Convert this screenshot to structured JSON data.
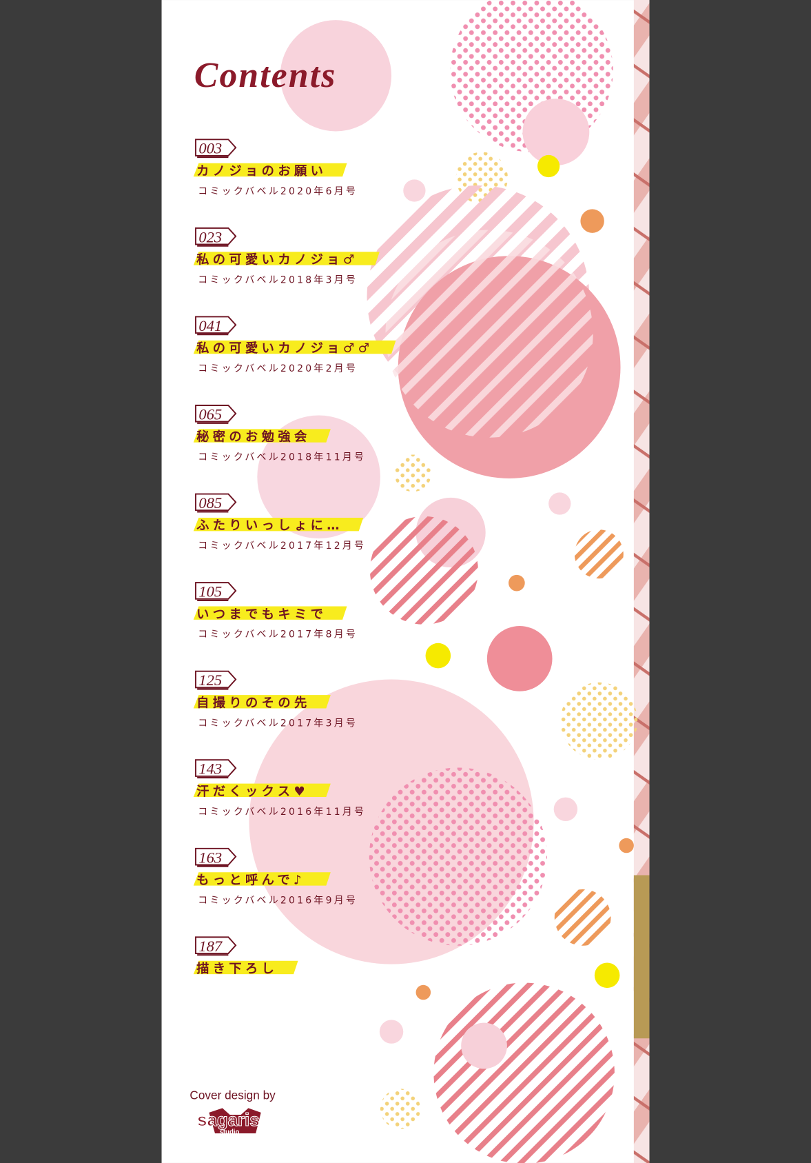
{
  "title": "Contents",
  "entries": [
    {
      "page": "003",
      "title": "カノジョのお願い",
      "source": "コミックバベル2020年6月号"
    },
    {
      "page": "023",
      "title": "私の可愛いカノジョ♂",
      "source": "コミックバベル2018年3月号"
    },
    {
      "page": "041",
      "title": "私の可愛いカノジョ♂♂",
      "source": "コミックバベル2020年2月号"
    },
    {
      "page": "065",
      "title": "秘密のお勉強会",
      "source": "コミックバベル2018年11月号"
    },
    {
      "page": "085",
      "title": "ふたりいっしょに…",
      "source": "コミックバベル2017年12月号"
    },
    {
      "page": "105",
      "title": "いつまでもキミで",
      "source": "コミックバベル2017年8月号"
    },
    {
      "page": "125",
      "title": "自撮りのその先",
      "source": "コミックバベル2017年3月号"
    },
    {
      "page": "143",
      "title": "汗だくックス♥",
      "source": "コミックバベル2016年11月号"
    },
    {
      "page": "163",
      "title": "もっと呼んで♪",
      "source": "コミックバベル2016年9月号"
    },
    {
      "page": "187",
      "title": "描き下ろし",
      "source": ""
    }
  ],
  "credit": {
    "label": "Cover design by",
    "logo_text": "sagaris",
    "logo_sub": "studio"
  },
  "colors": {
    "text": "#6e1423",
    "highlight": "#f8ec1e",
    "pink": "#f0a0a8",
    "light_pink": "#f8d5dc",
    "orange": "#ee9a5b",
    "yellow": "#f6ea00",
    "background": "#3b3b3b"
  }
}
